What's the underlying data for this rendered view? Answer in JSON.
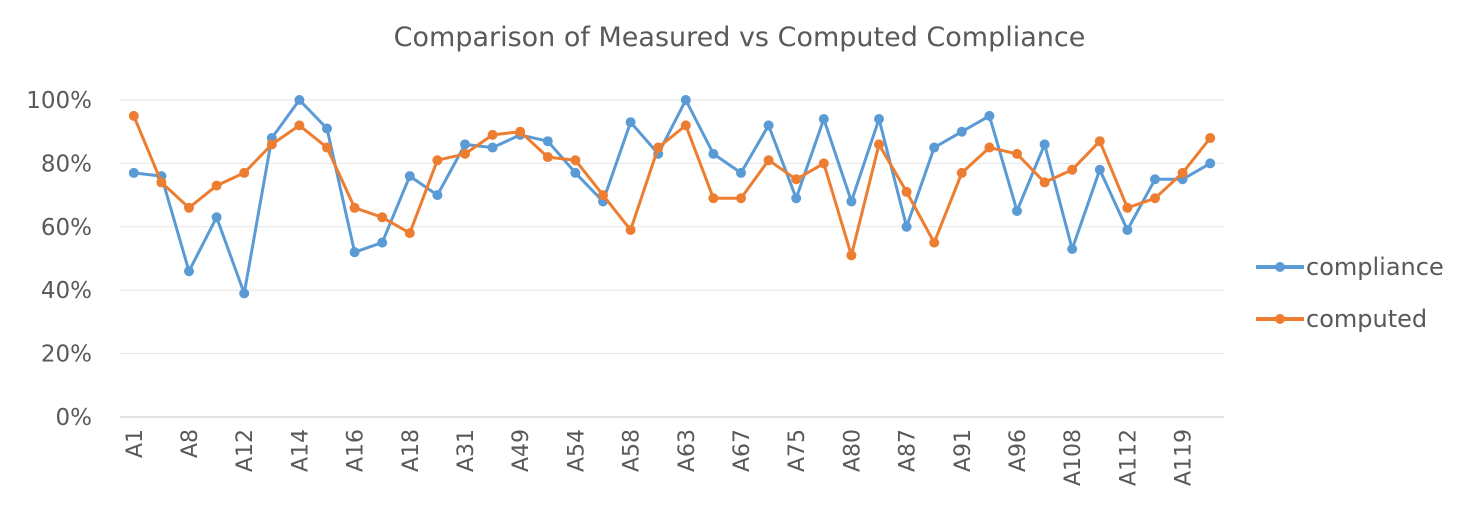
{
  "chart_data": {
    "type": "line",
    "title": "Comparison of Measured vs Computed Compliance",
    "xlabel": "",
    "ylabel": "",
    "ylim": [
      0,
      100
    ],
    "y_ticks": [
      "0%",
      "20%",
      "40%",
      "60%",
      "80%",
      "100%"
    ],
    "y_tick_values": [
      0,
      20,
      40,
      60,
      80,
      100
    ],
    "x_tick_labels": [
      "A1",
      "A8",
      "A12",
      "A14",
      "A16",
      "A18",
      "A31",
      "A49",
      "A54",
      "A58",
      "A63",
      "A67",
      "A75",
      "A80",
      "A87",
      "A91",
      "A96",
      "A108",
      "A112",
      "A119"
    ],
    "n_points": 40,
    "grid": "horizontal",
    "legend_position": "right",
    "series": [
      {
        "name": "compliance",
        "color": "#5B9BD5",
        "values": [
          77,
          76,
          46,
          63,
          39,
          88,
          100,
          91,
          52,
          55,
          76,
          70,
          86,
          85,
          89,
          87,
          77,
          68,
          93,
          83,
          100,
          83,
          77,
          92,
          69,
          94,
          68,
          94,
          60,
          85,
          90,
          95,
          65,
          86,
          53,
          78,
          59,
          75,
          75,
          80
        ]
      },
      {
        "name": "computed",
        "color": "#ED7D31",
        "values": [
          95,
          74,
          66,
          73,
          77,
          86,
          92,
          85,
          66,
          63,
          58,
          81,
          83,
          89,
          90,
          82,
          81,
          70,
          59,
          85,
          92,
          69,
          69,
          81,
          75,
          80,
          51,
          86,
          71,
          55,
          77,
          85,
          83,
          74,
          78,
          87,
          66,
          69,
          77,
          88
        ]
      }
    ]
  }
}
